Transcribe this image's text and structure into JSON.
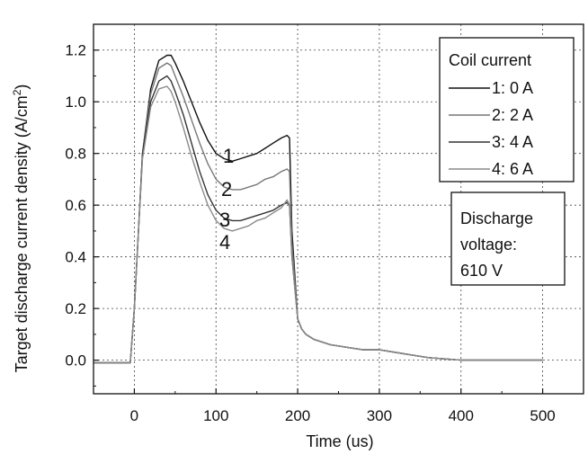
{
  "chart_data": {
    "type": "line",
    "xlabel": "Time (us)",
    "ylabel": "Target discharge current density (A/cm²)",
    "ylabel_main": "Target discharge current density (A/cm",
    "ylabel_sup": "2",
    "ylabel_end": ")",
    "xlim": [
      -50,
      550
    ],
    "ylim": [
      -0.13,
      1.3
    ],
    "xticks": [
      0,
      100,
      200,
      300,
      400,
      500
    ],
    "yticks": [
      0.0,
      0.2,
      0.4,
      0.6,
      0.8,
      1.0,
      1.2
    ],
    "xtick_labels": [
      "0",
      "100",
      "200",
      "300",
      "400",
      "500"
    ],
    "ytick_labels": [
      "0.0",
      "0.2",
      "0.4",
      "0.6",
      "0.8",
      "1.0",
      "1.2"
    ],
    "grid": true,
    "legend": {
      "title": "Coil current",
      "placement": "top-right",
      "entries": [
        "1: 0 A",
        "2: 2 A",
        "3: 4 A",
        "4: 6 A"
      ]
    },
    "annotation": {
      "lines": [
        "Discharge",
        "voltage:",
        "610 V"
      ]
    },
    "curve_labels": [
      "1",
      "2",
      "3",
      "4"
    ],
    "series": [
      {
        "name": "1: 0 A",
        "color": "#111111",
        "x": [
          -50,
          -5,
          0,
          5,
          10,
          20,
          30,
          40,
          45,
          50,
          60,
          70,
          80,
          90,
          100,
          110,
          120,
          130,
          140,
          150,
          160,
          170,
          180,
          187,
          190,
          193,
          200,
          205,
          210,
          220,
          240,
          260,
          280,
          300,
          320,
          340,
          360,
          380,
          400,
          450,
          500
        ],
        "y": [
          -0.01,
          -0.01,
          0.2,
          0.5,
          0.8,
          1.05,
          1.16,
          1.18,
          1.18,
          1.15,
          1.08,
          1.0,
          0.92,
          0.85,
          0.8,
          0.78,
          0.77,
          0.78,
          0.79,
          0.8,
          0.82,
          0.84,
          0.86,
          0.87,
          0.86,
          0.5,
          0.16,
          0.12,
          0.1,
          0.08,
          0.06,
          0.05,
          0.04,
          0.04,
          0.03,
          0.02,
          0.01,
          0.005,
          0.0,
          0.0,
          0.0
        ]
      },
      {
        "name": "2: 2 A",
        "color": "#777777",
        "x": [
          -50,
          -5,
          0,
          5,
          10,
          20,
          30,
          40,
          45,
          50,
          60,
          70,
          80,
          90,
          100,
          110,
          120,
          130,
          140,
          150,
          160,
          170,
          180,
          187,
          190,
          193,
          200,
          205,
          210,
          220,
          240,
          260,
          280,
          300,
          320,
          340,
          360,
          380,
          400,
          450,
          500
        ],
        "y": [
          -0.01,
          -0.01,
          0.2,
          0.5,
          0.8,
          1.03,
          1.13,
          1.15,
          1.14,
          1.1,
          1.02,
          0.93,
          0.84,
          0.76,
          0.7,
          0.67,
          0.66,
          0.66,
          0.67,
          0.68,
          0.7,
          0.71,
          0.73,
          0.74,
          0.73,
          0.45,
          0.16,
          0.12,
          0.1,
          0.08,
          0.06,
          0.05,
          0.04,
          0.04,
          0.03,
          0.02,
          0.01,
          0.005,
          0.0,
          0.0,
          0.0
        ]
      },
      {
        "name": "3: 4 A",
        "color": "#333333",
        "x": [
          -50,
          -5,
          0,
          5,
          10,
          20,
          30,
          40,
          45,
          50,
          60,
          70,
          80,
          90,
          100,
          110,
          120,
          130,
          140,
          150,
          160,
          170,
          180,
          187,
          190,
          193,
          200,
          205,
          210,
          220,
          240,
          260,
          280,
          300,
          320,
          340,
          360,
          380,
          400,
          450,
          500
        ],
        "y": [
          -0.01,
          -0.01,
          0.2,
          0.5,
          0.8,
          1.0,
          1.08,
          1.1,
          1.08,
          1.04,
          0.95,
          0.84,
          0.73,
          0.64,
          0.58,
          0.55,
          0.54,
          0.54,
          0.55,
          0.56,
          0.57,
          0.58,
          0.6,
          0.61,
          0.6,
          0.4,
          0.16,
          0.12,
          0.1,
          0.08,
          0.06,
          0.05,
          0.04,
          0.04,
          0.03,
          0.02,
          0.01,
          0.005,
          0.0,
          0.0,
          0.0
        ]
      },
      {
        "name": "4: 6 A",
        "color": "#8a8a8a",
        "x": [
          -50,
          -5,
          0,
          5,
          10,
          20,
          30,
          40,
          45,
          50,
          60,
          70,
          80,
          90,
          100,
          110,
          120,
          130,
          140,
          150,
          160,
          170,
          180,
          187,
          190,
          193,
          200,
          205,
          210,
          220,
          240,
          260,
          280,
          300,
          320,
          340,
          360,
          380,
          400,
          450,
          500
        ],
        "y": [
          -0.01,
          -0.01,
          0.2,
          0.5,
          0.78,
          0.98,
          1.05,
          1.06,
          1.04,
          1.0,
          0.9,
          0.79,
          0.69,
          0.6,
          0.54,
          0.51,
          0.5,
          0.51,
          0.52,
          0.54,
          0.55,
          0.57,
          0.59,
          0.62,
          0.6,
          0.4,
          0.16,
          0.12,
          0.1,
          0.08,
          0.06,
          0.05,
          0.04,
          0.04,
          0.03,
          0.02,
          0.01,
          0.005,
          0.0,
          0.0,
          0.0
        ]
      }
    ]
  }
}
